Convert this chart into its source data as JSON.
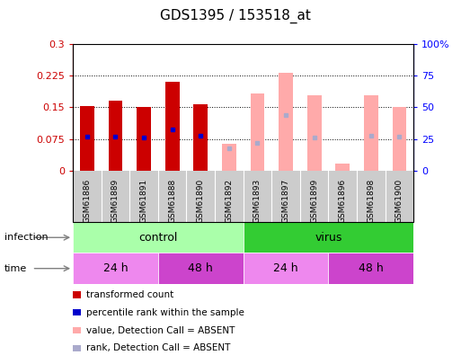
{
  "title": "GDS1395 / 153518_at",
  "samples": [
    "GSM61886",
    "GSM61889",
    "GSM61891",
    "GSM61888",
    "GSM61890",
    "GSM61892",
    "GSM61893",
    "GSM61897",
    "GSM61899",
    "GSM61896",
    "GSM61898",
    "GSM61900"
  ],
  "transformed_count": [
    0.153,
    0.165,
    0.15,
    0.21,
    0.158,
    null,
    null,
    null,
    null,
    null,
    null,
    null
  ],
  "percentile_rank": [
    27,
    27,
    26,
    33,
    28,
    null,
    null,
    null,
    null,
    null,
    null,
    null
  ],
  "absent_value": [
    null,
    null,
    null,
    null,
    null,
    0.065,
    0.182,
    0.232,
    0.178,
    0.018,
    0.178,
    0.152
  ],
  "absent_rank": [
    null,
    null,
    null,
    null,
    null,
    18,
    22,
    44,
    26,
    null,
    28,
    27
  ],
  "ylim_left": [
    0,
    0.3
  ],
  "ylim_right": [
    0,
    100
  ],
  "yticks_left": [
    0,
    0.075,
    0.15,
    0.225,
    0.3
  ],
  "ytick_labels_left": [
    "0",
    "0.075",
    "0.15",
    "0.225",
    "0.3"
  ],
  "yticks_right": [
    0,
    25,
    50,
    75,
    100
  ],
  "ytick_labels_right": [
    "0",
    "25",
    "50",
    "75",
    "100%"
  ],
  "color_dark_red": "#cc0000",
  "color_blue": "#0000cc",
  "color_pink": "#ffaaaa",
  "color_lavender": "#aaaacc",
  "color_light_green": "#aaffaa",
  "color_bright_green": "#33cc33",
  "color_light_purple": "#ee88ee",
  "color_bright_purple": "#cc44cc",
  "color_gray_bg": "#cccccc",
  "bar_width": 0.5,
  "legend_items": [
    {
      "color": "#cc0000",
      "label": "transformed count"
    },
    {
      "color": "#0000cc",
      "label": "percentile rank within the sample"
    },
    {
      "color": "#ffaaaa",
      "label": "value, Detection Call = ABSENT"
    },
    {
      "color": "#aaaacc",
      "label": "rank, Detection Call = ABSENT"
    }
  ]
}
